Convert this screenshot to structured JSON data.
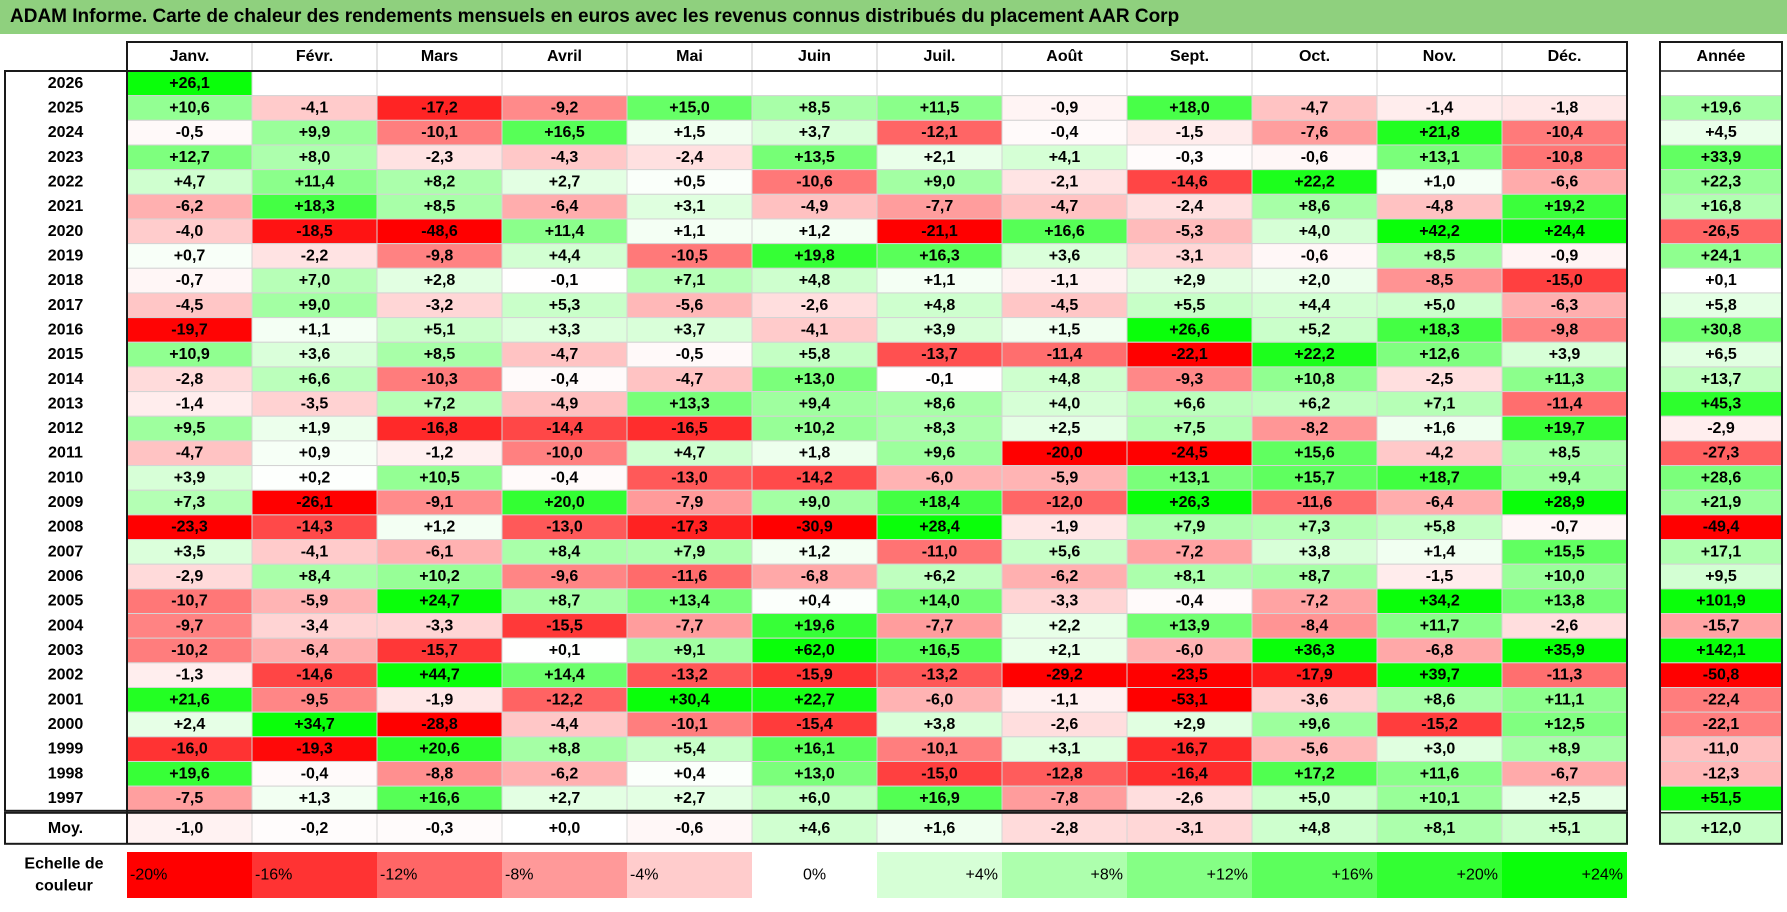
{
  "title": "ADAM Informe. Carte de chaleur des rendements mensuels en euros avec les revenus connus distribués du placement AAR Corp",
  "chart_data": {
    "type": "heatmap",
    "months": [
      "Janv.",
      "Févr.",
      "Mars",
      "Avril",
      "Mai",
      "Juin",
      "Juil.",
      "Août",
      "Sept.",
      "Oct.",
      "Nov.",
      "Déc."
    ],
    "year_column_label": "Année",
    "average_row_label": "Moy.",
    "rows": [
      {
        "year": "2026",
        "values": [
          "+26,1",
          "",
          "",
          "",
          "",
          "",
          "",
          "",
          "",
          "",
          "",
          ""
        ],
        "annual": ""
      },
      {
        "year": "2025",
        "values": [
          "+10,6",
          "-4,1",
          "-17,2",
          "-9,2",
          "+15,0",
          "+8,5",
          "+11,5",
          "-0,9",
          "+18,0",
          "-4,7",
          "-1,4",
          "-1,8"
        ],
        "annual": "+19,6"
      },
      {
        "year": "2024",
        "values": [
          "-0,5",
          "+9,9",
          "-10,1",
          "+16,5",
          "+1,5",
          "+3,7",
          "-12,1",
          "-0,4",
          "-1,5",
          "-7,6",
          "+21,8",
          "-10,4"
        ],
        "annual": "+4,5"
      },
      {
        "year": "2023",
        "values": [
          "+12,7",
          "+8,0",
          "-2,3",
          "-4,3",
          "-2,4",
          "+13,5",
          "+2,1",
          "+4,1",
          "-0,3",
          "-0,6",
          "+13,1",
          "-10,8"
        ],
        "annual": "+33,9"
      },
      {
        "year": "2022",
        "values": [
          "+4,7",
          "+11,4",
          "+8,2",
          "+2,7",
          "+0,5",
          "-10,6",
          "+9,0",
          "-2,1",
          "-14,6",
          "+22,2",
          "+1,0",
          "-6,6"
        ],
        "annual": "+22,3"
      },
      {
        "year": "2021",
        "values": [
          "-6,2",
          "+18,3",
          "+8,5",
          "-6,4",
          "+3,1",
          "-4,9",
          "-7,7",
          "-4,7",
          "-2,4",
          "+8,6",
          "-4,8",
          "+19,2"
        ],
        "annual": "+16,8"
      },
      {
        "year": "2020",
        "values": [
          "-4,0",
          "-18,5",
          "-48,6",
          "+11,4",
          "+1,1",
          "+1,2",
          "-21,1",
          "+16,6",
          "-5,3",
          "+4,0",
          "+42,2",
          "+24,4"
        ],
        "annual": "-26,5"
      },
      {
        "year": "2019",
        "values": [
          "+0,7",
          "-2,2",
          "-9,8",
          "+4,4",
          "-10,5",
          "+19,8",
          "+16,3",
          "+3,6",
          "-3,1",
          "-0,6",
          "+8,5",
          "-0,9"
        ],
        "annual": "+24,1"
      },
      {
        "year": "2018",
        "values": [
          "-0,7",
          "+7,0",
          "+2,8",
          "-0,1",
          "+7,1",
          "+4,8",
          "+1,1",
          "-1,1",
          "+2,9",
          "+2,0",
          "-8,5",
          "-15,0"
        ],
        "annual": "+0,1"
      },
      {
        "year": "2017",
        "values": [
          "-4,5",
          "+9,0",
          "-3,2",
          "+5,3",
          "-5,6",
          "-2,6",
          "+4,8",
          "-4,5",
          "+5,5",
          "+4,4",
          "+5,0",
          "-6,3"
        ],
        "annual": "+5,8"
      },
      {
        "year": "2016",
        "values": [
          "-19,7",
          "+1,1",
          "+5,1",
          "+3,3",
          "+3,7",
          "-4,1",
          "+3,9",
          "+1,5",
          "+26,6",
          "+5,2",
          "+18,3",
          "-9,8"
        ],
        "annual": "+30,8"
      },
      {
        "year": "2015",
        "values": [
          "+10,9",
          "+3,6",
          "+8,5",
          "-4,7",
          "-0,5",
          "+5,8",
          "-13,7",
          "-11,4",
          "-22,1",
          "+22,2",
          "+12,6",
          "+3,9"
        ],
        "annual": "+6,5"
      },
      {
        "year": "2014",
        "values": [
          "-2,8",
          "+6,6",
          "-10,3",
          "-0,4",
          "-4,7",
          "+13,0",
          "-0,1",
          "+4,8",
          "-9,3",
          "+10,8",
          "-2,5",
          "+11,3"
        ],
        "annual": "+13,7"
      },
      {
        "year": "2013",
        "values": [
          "-1,4",
          "-3,5",
          "+7,2",
          "-4,9",
          "+13,3",
          "+9,4",
          "+8,6",
          "+4,0",
          "+6,6",
          "+6,2",
          "+7,1",
          "-11,4"
        ],
        "annual": "+45,3"
      },
      {
        "year": "2012",
        "values": [
          "+9,5",
          "+1,9",
          "-16,8",
          "-14,4",
          "-16,5",
          "+10,2",
          "+8,3",
          "+2,5",
          "+7,5",
          "-8,2",
          "+1,6",
          "+19,7"
        ],
        "annual": "-2,9"
      },
      {
        "year": "2011",
        "values": [
          "-4,7",
          "+0,9",
          "-1,2",
          "-10,0",
          "+4,7",
          "+1,8",
          "+9,6",
          "-20,0",
          "-24,5",
          "+15,6",
          "-4,2",
          "+8,5"
        ],
        "annual": "-27,3"
      },
      {
        "year": "2010",
        "values": [
          "+3,9",
          "+0,2",
          "+10,5",
          "-0,4",
          "-13,0",
          "-14,2",
          "-6,0",
          "-5,9",
          "+13,1",
          "+15,7",
          "+18,7",
          "+9,4"
        ],
        "annual": "+28,6"
      },
      {
        "year": "2009",
        "values": [
          "+7,3",
          "-26,1",
          "-9,1",
          "+20,0",
          "-7,9",
          "+9,0",
          "+18,4",
          "-12,0",
          "+26,3",
          "-11,6",
          "-6,4",
          "+28,9"
        ],
        "annual": "+21,9"
      },
      {
        "year": "2008",
        "values": [
          "-23,3",
          "-14,3",
          "+1,2",
          "-13,0",
          "-17,3",
          "-30,9",
          "+28,4",
          "-1,9",
          "+7,9",
          "+7,3",
          "+5,8",
          "-0,7"
        ],
        "annual": "-49,4"
      },
      {
        "year": "2007",
        "values": [
          "+3,5",
          "-4,1",
          "-6,1",
          "+8,4",
          "+7,9",
          "+1,2",
          "-11,0",
          "+5,6",
          "-7,2",
          "+3,8",
          "+1,4",
          "+15,5"
        ],
        "annual": "+17,1"
      },
      {
        "year": "2006",
        "values": [
          "-2,9",
          "+8,4",
          "+10,2",
          "-9,6",
          "-11,6",
          "-6,8",
          "+6,2",
          "-6,2",
          "+8,1",
          "+8,7",
          "-1,5",
          "+10,0"
        ],
        "annual": "+9,5"
      },
      {
        "year": "2005",
        "values": [
          "-10,7",
          "-5,9",
          "+24,7",
          "+8,7",
          "+13,4",
          "+0,4",
          "+14,0",
          "-3,3",
          "-0,4",
          "-7,2",
          "+34,2",
          "+13,8"
        ],
        "annual": "+101,9"
      },
      {
        "year": "2004",
        "values": [
          "-9,7",
          "-3,4",
          "-3,3",
          "-15,5",
          "-7,7",
          "+19,6",
          "-7,7",
          "+2,2",
          "+13,9",
          "-8,4",
          "+11,7",
          "-2,6"
        ],
        "annual": "-15,7"
      },
      {
        "year": "2003",
        "values": [
          "-10,2",
          "-6,4",
          "-15,7",
          "+0,1",
          "+9,1",
          "+62,0",
          "+16,5",
          "+2,1",
          "-6,0",
          "+36,3",
          "-6,8",
          "+35,9"
        ],
        "annual": "+142,1"
      },
      {
        "year": "2002",
        "values": [
          "-1,3",
          "-14,6",
          "+44,7",
          "+14,4",
          "-13,2",
          "-15,9",
          "-13,2",
          "-29,2",
          "-23,5",
          "-17,9",
          "+39,7",
          "-11,3"
        ],
        "annual": "-50,8"
      },
      {
        "year": "2001",
        "values": [
          "+21,6",
          "-9,5",
          "-1,9",
          "-12,2",
          "+30,4",
          "+22,7",
          "-6,0",
          "-1,1",
          "-53,1",
          "-3,6",
          "+8,6",
          "+11,1"
        ],
        "annual": "-22,4"
      },
      {
        "year": "2000",
        "values": [
          "+2,4",
          "+34,7",
          "-28,8",
          "-4,4",
          "-10,1",
          "-15,4",
          "+3,8",
          "-2,6",
          "+2,9",
          "+9,6",
          "-15,2",
          "+12,5"
        ],
        "annual": "-22,1"
      },
      {
        "year": "1999",
        "values": [
          "-16,0",
          "-19,3",
          "+20,6",
          "+8,8",
          "+5,4",
          "+16,1",
          "-10,1",
          "+3,1",
          "-16,7",
          "-5,6",
          "+3,0",
          "+8,9"
        ],
        "annual": "-11,0"
      },
      {
        "year": "1998",
        "values": [
          "+19,6",
          "-0,4",
          "-8,8",
          "-6,2",
          "+0,4",
          "+13,0",
          "-15,0",
          "-12,8",
          "-16,4",
          "+17,2",
          "+11,6",
          "-6,7"
        ],
        "annual": "-12,3"
      },
      {
        "year": "1997",
        "values": [
          "-7,5",
          "+1,3",
          "+16,6",
          "+2,7",
          "+2,7",
          "+6,0",
          "+16,9",
          "-7,8",
          "-2,6",
          "+5,0",
          "+10,1",
          "+2,5"
        ],
        "annual": "+51,5"
      }
    ],
    "averages": [
      "-1,0",
      "-0,2",
      "-0,3",
      "+0,0",
      "-0,6",
      "+4,6",
      "+1,6",
      "-2,8",
      "-3,1",
      "+4,8",
      "+8,1",
      "+5,1"
    ],
    "average_annual": "+12,0",
    "scale_label_line1": "Echelle de",
    "scale_label_line2": "couleur",
    "scale": [
      {
        "label": "-20%",
        "value": -20,
        "color": "#ff0000"
      },
      {
        "label": "-16%",
        "value": -16,
        "color": "#ff3333"
      },
      {
        "label": "-12%",
        "value": -12,
        "color": "#ff6666"
      },
      {
        "label": "-8%",
        "value": -8,
        "color": "#ff9999"
      },
      {
        "label": "-4%",
        "value": -4,
        "color": "#ffcccc"
      },
      {
        "label": "0%",
        "value": 0,
        "color": "#ffffff"
      },
      {
        "label": "+4%",
        "value": 4,
        "color": "#d6ffd6"
      },
      {
        "label": "+8%",
        "value": 8,
        "color": "#adffad"
      },
      {
        "label": "+12%",
        "value": 12,
        "color": "#85ff85"
      },
      {
        "label": "+16%",
        "value": 16,
        "color": "#5cff5c"
      },
      {
        "label": "+20%",
        "value": 20,
        "color": "#33ff33"
      },
      {
        "label": "+24%",
        "value": 24,
        "color": "#0aff0a"
      }
    ]
  }
}
